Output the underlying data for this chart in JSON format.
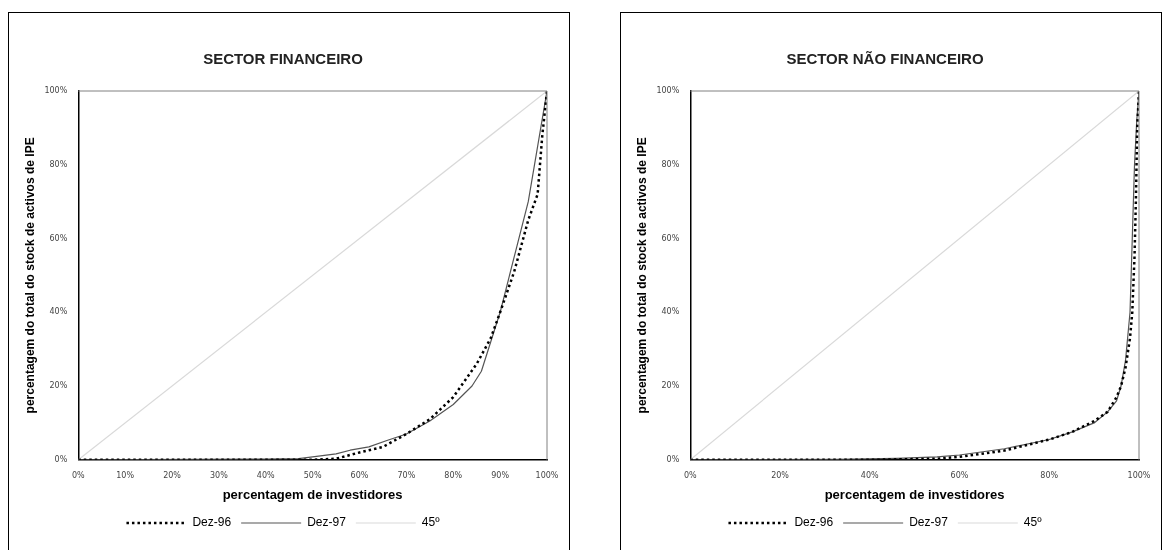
{
  "chart_data": [
    {
      "type": "line",
      "title": "SECTOR FINANCEIRO",
      "xlabel": "percentagem de investidores",
      "ylabel": "percentagem do total do stock de activos de IPE",
      "xlim": [
        0,
        100
      ],
      "ylim": [
        0,
        100
      ],
      "xticks": [
        {
          "value": 0,
          "label": "0%"
        },
        {
          "value": 10,
          "label": "10%"
        },
        {
          "value": 20,
          "label": "20%"
        },
        {
          "value": 30,
          "label": "30%"
        },
        {
          "value": 40,
          "label": "40%"
        },
        {
          "value": 50,
          "label": "50%"
        },
        {
          "value": 60,
          "label": "60%"
        },
        {
          "value": 70,
          "label": "70%"
        },
        {
          "value": 80,
          "label": "80%"
        },
        {
          "value": 90,
          "label": "90%"
        },
        {
          "value": 100,
          "label": "100%"
        }
      ],
      "yticks": [
        {
          "value": 0,
          "label": "0%"
        },
        {
          "value": 20,
          "label": "20%"
        },
        {
          "value": 40,
          "label": "40%"
        },
        {
          "value": 60,
          "label": "60%"
        },
        {
          "value": 80,
          "label": "80%"
        },
        {
          "value": 100,
          "label": "100%"
        }
      ],
      "grid": false,
      "legend": "bottom",
      "marker": "none",
      "series": [
        {
          "name": "Dez-96",
          "color": "#000000",
          "line_style": "dotted",
          "x": [
            0,
            40,
            50,
            55,
            60,
            65,
            70,
            75,
            80,
            85,
            88,
            90,
            93,
            96,
            98,
            99,
            100
          ],
          "values": [
            0,
            0,
            0,
            0.3,
            2,
            3.5,
            7,
            11,
            17,
            26,
            33,
            40,
            51,
            65,
            72,
            88,
            100
          ]
        },
        {
          "name": "Dez-97",
          "color": "#555555",
          "line_style": "solid",
          "x": [
            0,
            40,
            47,
            50,
            55,
            58,
            62,
            66,
            70,
            75,
            80,
            82,
            84,
            86,
            88,
            90,
            93,
            96,
            98,
            100
          ],
          "values": [
            0,
            0.2,
            0.3,
            0.8,
            1.6,
            2.6,
            3.5,
            5.3,
            7,
            10.5,
            15,
            17.5,
            20,
            24,
            32,
            40,
            55,
            70,
            85,
            100
          ]
        },
        {
          "name": "45º",
          "color": "#d9d9d9",
          "line_style": "solid",
          "x": [
            0,
            100
          ],
          "values": [
            0,
            100
          ]
        }
      ]
    },
    {
      "type": "line",
      "title": "SECTOR NÃO FINANCEIRO",
      "xlabel": "percentagem de investidores",
      "ylabel": "percentagem do total do stock de activos de IPE",
      "xlim": [
        0,
        100
      ],
      "ylim": [
        0,
        100
      ],
      "xticks": [
        {
          "value": 0,
          "label": "0%"
        },
        {
          "value": 20,
          "label": "20%"
        },
        {
          "value": 40,
          "label": "40%"
        },
        {
          "value": 60,
          "label": "60%"
        },
        {
          "value": 80,
          "label": "80%"
        },
        {
          "value": 100,
          "label": "100%"
        }
      ],
      "yticks": [
        {
          "value": 0,
          "label": "0%"
        },
        {
          "value": 20,
          "label": "20%"
        },
        {
          "value": 40,
          "label": "40%"
        },
        {
          "value": 60,
          "label": "60%"
        },
        {
          "value": 80,
          "label": "80%"
        },
        {
          "value": 100,
          "label": "100%"
        }
      ],
      "grid": false,
      "legend": "bottom",
      "marker": "none",
      "series": [
        {
          "name": "Dez-96",
          "color": "#000000",
          "line_style": "dotted",
          "x": [
            0,
            40,
            55,
            60,
            70,
            80,
            85,
            90,
            93,
            95,
            96,
            97,
            98,
            98.5,
            99,
            99.3,
            99.6,
            100
          ],
          "values": [
            0,
            0,
            0.3,
            0.8,
            2.5,
            5.5,
            7.5,
            10.5,
            13,
            17,
            20,
            25,
            33,
            40,
            55,
            70,
            90,
            100
          ]
        },
        {
          "name": "Dez-97",
          "color": "#555555",
          "line_style": "solid",
          "x": [
            0,
            33,
            46,
            55,
            60,
            70,
            80,
            85,
            90,
            93,
            95,
            96,
            97,
            98,
            98.5,
            99,
            99.5,
            100
          ],
          "values": [
            0,
            0.1,
            0.4,
            0.8,
            1.3,
            3,
            5.5,
            7.5,
            10,
            13,
            16,
            20,
            27,
            40,
            60,
            80,
            92,
            100
          ]
        },
        {
          "name": "45º",
          "color": "#d9d9d9",
          "line_style": "solid",
          "x": [
            0,
            100
          ],
          "values": [
            0,
            100
          ]
        }
      ]
    }
  ]
}
